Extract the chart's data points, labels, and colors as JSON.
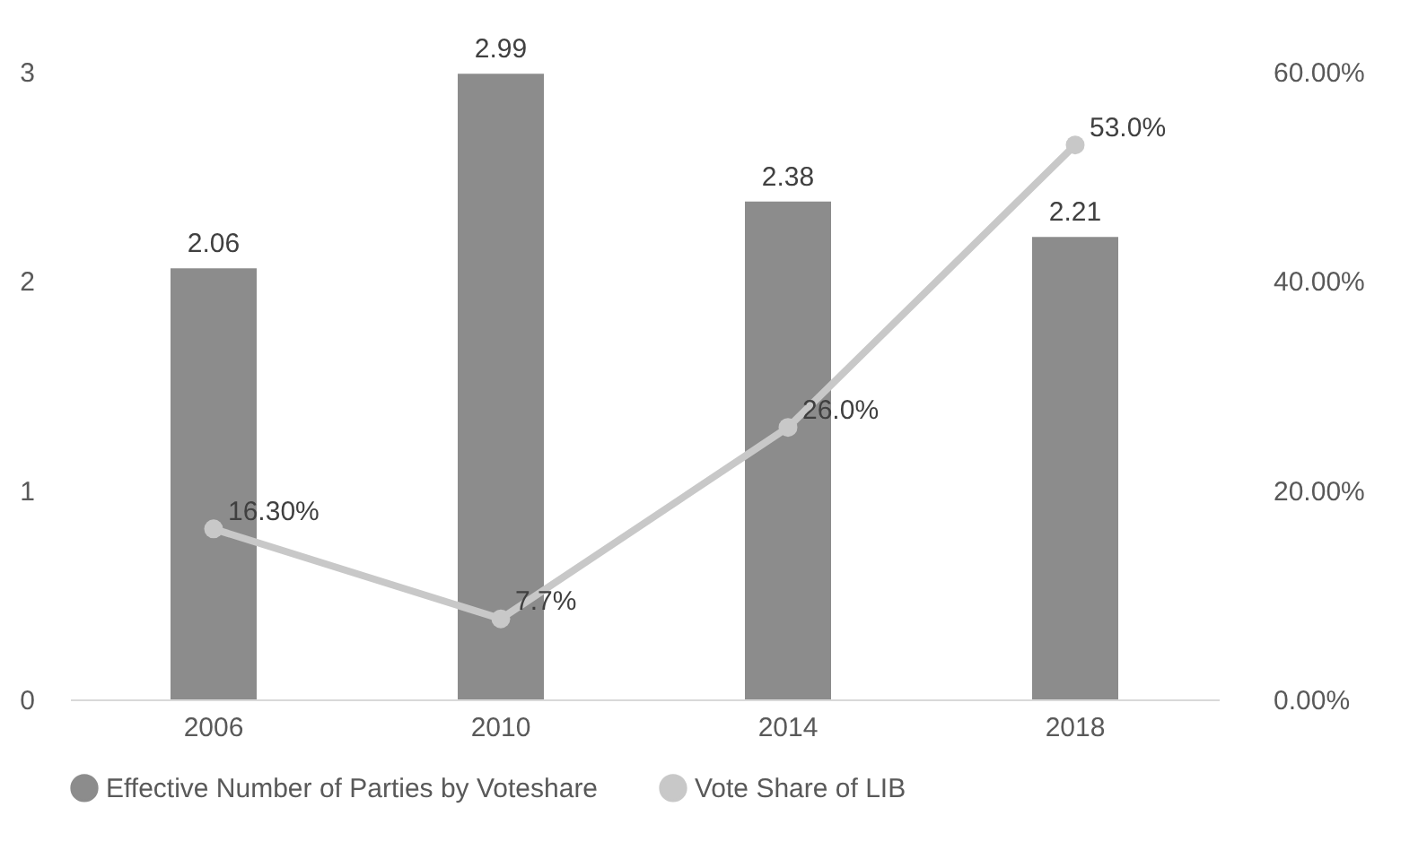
{
  "chart_data": {
    "type": "bar",
    "categories": [
      "2006",
      "2010",
      "2014",
      "2018"
    ],
    "series": [
      {
        "name": "Effective Number of Parties by Voteshare",
        "color": "#8c8c8c",
        "values": [
          2.06,
          2.99,
          2.38,
          2.21
        ],
        "value_labels": [
          "2.06",
          "2.99",
          "2.38",
          "2.21"
        ]
      },
      {
        "name": "Vote Share of LIB",
        "type": "line",
        "axis": "y2",
        "color": "#c8c8c8",
        "values": [
          16.3,
          7.7,
          26.0,
          53.0
        ],
        "value_labels": [
          "16.30%",
          "7.7%",
          "26.0%",
          "53.0%"
        ]
      }
    ],
    "ylim": [
      0,
      3
    ],
    "yticks": [
      0,
      1,
      2,
      3
    ],
    "y2lim": [
      0,
      60
    ],
    "y2ticks": [
      {
        "value": 0,
        "label": "0.00%"
      },
      {
        "value": 20,
        "label": "20.00%"
      },
      {
        "value": 40,
        "label": "40.00%"
      },
      {
        "value": 60,
        "label": "60.00%"
      }
    ],
    "grid": false,
    "legend": "bottom",
    "marker": "circle",
    "line_style": "solid"
  }
}
